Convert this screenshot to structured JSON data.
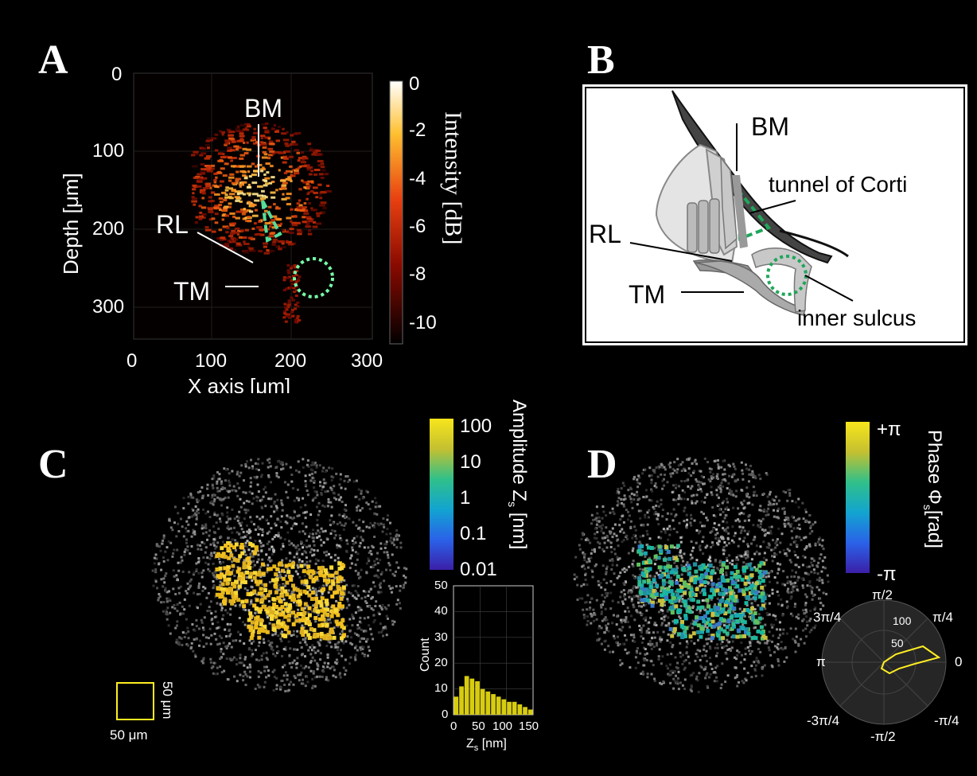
{
  "panels": {
    "A": {
      "letter": "A",
      "ylabel": "Depth [μm]",
      "xlabel": "X axis [μm]",
      "yticks": [
        "0",
        "100",
        "200",
        "300"
      ],
      "xticks": [
        "0",
        "100",
        "200",
        "300"
      ],
      "colorbar": {
        "label": "Intensity [dB]",
        "ticks": [
          "0",
          "-2",
          "-4",
          "-6",
          "-8",
          "-10"
        ]
      },
      "annotations": {
        "bm": "BM",
        "rl": "RL",
        "tm": "TM"
      }
    },
    "B": {
      "letter": "B",
      "labels": {
        "bm": "BM",
        "tunnel": "tunnel of Corti",
        "rl": "RL",
        "tm": "TM",
        "sulcus": "inner sulcus"
      }
    },
    "C": {
      "letter": "C",
      "colorbar": {
        "label": "Amplitude Z",
        "label_sub": "s",
        "label_unit": " [nm]",
        "ticks": [
          "100",
          "10",
          "1",
          "0.1",
          "0.01"
        ]
      },
      "scalebar": {
        "horizontal": "50 μm",
        "vertical": "50 μm"
      },
      "histogram": {
        "ylabel": "Count",
        "xlabel": "Z",
        "xlabel_sub": "s",
        "xlabel_unit": " [nm]"
      }
    },
    "D": {
      "letter": "D",
      "colorbar": {
        "label": "Phase Φ",
        "label_sub": "s",
        "label_unit": "[rad]",
        "ticks": [
          "+π",
          "-π"
        ]
      },
      "polar": {
        "angle_labels": {
          "top": "π/2",
          "top_left": "3π/4",
          "top_right": "π/4",
          "left": "π",
          "right": "0",
          "bottom_left": "-3π/4",
          "bottom": "-π/2",
          "bottom_right": "-π/4"
        },
        "radial_labels": [
          "100",
          "50"
        ]
      }
    }
  },
  "chart_data": [
    {
      "type": "heatmap",
      "panel": "A",
      "xlabel": "X axis [μm]",
      "ylabel": "Depth [μm]",
      "xlim": [
        0,
        310
      ],
      "ylim": [
        340,
        0
      ],
      "xticks": [
        0,
        100,
        200,
        300
      ],
      "yticks": [
        0,
        100,
        200,
        300
      ],
      "colorbar_label": "Intensity [dB]",
      "colorbar_range": [
        -11,
        0
      ]
    },
    {
      "type": "bar",
      "panel": "C-histogram",
      "xlabel": "Zs [nm]",
      "ylabel": "Count",
      "xlim": [
        0,
        150
      ],
      "ylim": [
        0,
        50
      ],
      "xticks": [
        0,
        50,
        100,
        150
      ],
      "yticks": [
        0,
        10,
        20,
        30,
        40,
        50
      ],
      "categories": [
        5,
        15,
        25,
        35,
        45,
        55,
        65,
        75,
        85,
        95,
        105,
        115,
        125,
        135,
        145
      ],
      "values": [
        7,
        11,
        15,
        14,
        13,
        10,
        9,
        8,
        7,
        6,
        5,
        5,
        4,
        3,
        2
      ]
    },
    {
      "type": "line",
      "panel": "D-polar",
      "radial_ticks": [
        50,
        100
      ],
      "angle_labels": [
        "0",
        "π/4",
        "π/2",
        "3π/4",
        "π",
        "-3π/4",
        "-π/2",
        "-π/4"
      ]
    }
  ],
  "colors": {
    "background": "#000000",
    "accent_green": "#55dd99",
    "yellow": "#ffee22"
  }
}
